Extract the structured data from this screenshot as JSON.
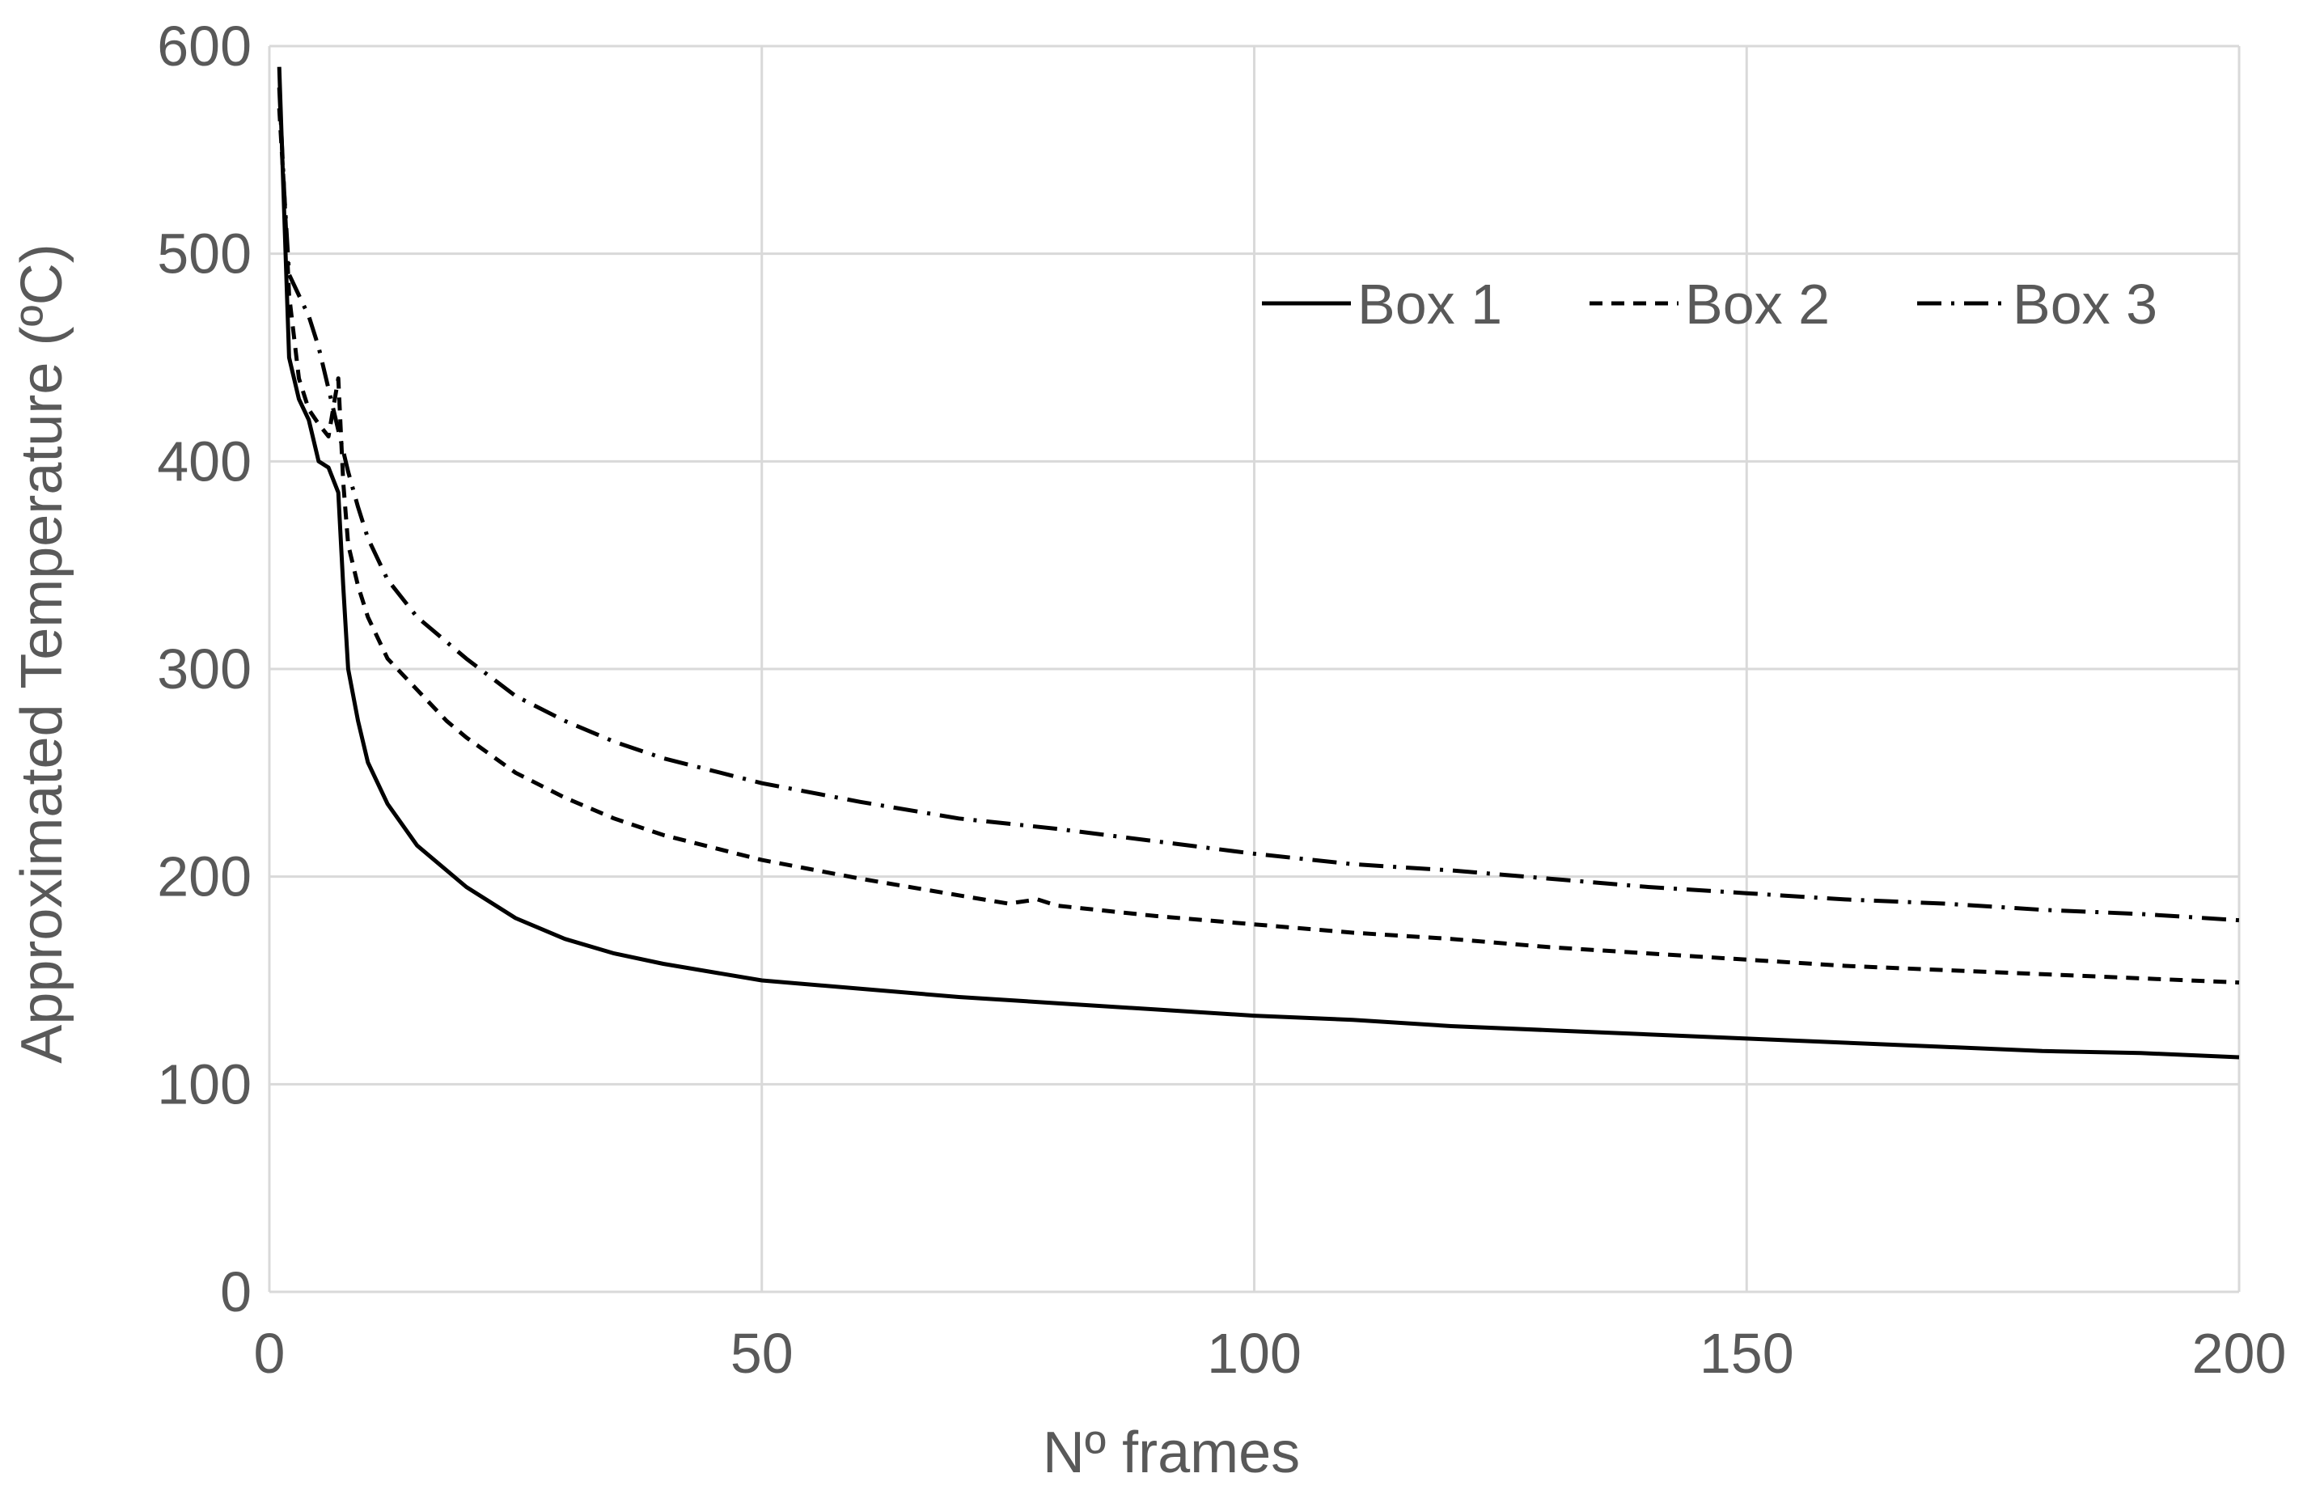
{
  "chart_data": {
    "type": "line",
    "title": "",
    "xlabel": "Nº frames",
    "ylabel": "Approximated Temperature (ºC)",
    "xlim": [
      0,
      200
    ],
    "ylim": [
      0,
      600
    ],
    "x_ticks": [
      0,
      50,
      100,
      150,
      200
    ],
    "y_ticks": [
      0,
      100,
      200,
      300,
      400,
      500,
      600
    ],
    "grid": "major x and y",
    "legend_position": "top-right",
    "series": [
      {
        "name": "Box 1",
        "line_style": "solid",
        "color": "#000000",
        "points": [
          [
            1,
            590
          ],
          [
            1.5,
            520
          ],
          [
            2,
            450
          ],
          [
            3,
            430
          ],
          [
            4,
            420
          ],
          [
            5,
            400
          ],
          [
            6,
            397
          ],
          [
            7,
            385
          ],
          [
            7.5,
            340
          ],
          [
            8,
            300
          ],
          [
            9,
            275
          ],
          [
            10,
            255
          ],
          [
            12,
            235
          ],
          [
            15,
            215
          ],
          [
            20,
            195
          ],
          [
            25,
            180
          ],
          [
            30,
            170
          ],
          [
            35,
            163
          ],
          [
            40,
            158
          ],
          [
            50,
            150
          ],
          [
            60,
            146
          ],
          [
            70,
            142
          ],
          [
            80,
            139
          ],
          [
            90,
            136
          ],
          [
            100,
            133
          ],
          [
            110,
            131
          ],
          [
            120,
            128
          ],
          [
            130,
            126
          ],
          [
            140,
            124
          ],
          [
            150,
            122
          ],
          [
            160,
            120
          ],
          [
            170,
            118
          ],
          [
            180,
            116
          ],
          [
            190,
            115
          ],
          [
            200,
            113
          ]
        ]
      },
      {
        "name": "Box 2",
        "line_style": "dashed",
        "color": "#000000",
        "points": [
          [
            1,
            570
          ],
          [
            1.5,
            530
          ],
          [
            2,
            480
          ],
          [
            3,
            440
          ],
          [
            4,
            425
          ],
          [
            5,
            418
          ],
          [
            6,
            412
          ],
          [
            7,
            440
          ],
          [
            7.5,
            390
          ],
          [
            8,
            360
          ],
          [
            9,
            340
          ],
          [
            10,
            325
          ],
          [
            12,
            305
          ],
          [
            15,
            290
          ],
          [
            18,
            275
          ],
          [
            20,
            267
          ],
          [
            25,
            250
          ],
          [
            30,
            238
          ],
          [
            35,
            228
          ],
          [
            40,
            220
          ],
          [
            50,
            208
          ],
          [
            60,
            199
          ],
          [
            70,
            191
          ],
          [
            75,
            187
          ],
          [
            78,
            189
          ],
          [
            80,
            186
          ],
          [
            90,
            181
          ],
          [
            100,
            177
          ],
          [
            110,
            173
          ],
          [
            120,
            170
          ],
          [
            130,
            166
          ],
          [
            140,
            163
          ],
          [
            150,
            160
          ],
          [
            160,
            157
          ],
          [
            170,
            155
          ],
          [
            180,
            153
          ],
          [
            190,
            151
          ],
          [
            200,
            149
          ]
        ]
      },
      {
        "name": "Box 3",
        "line_style": "dash-dot",
        "color": "#000000",
        "points": [
          [
            1,
            580
          ],
          [
            1.5,
            530
          ],
          [
            2,
            490
          ],
          [
            3,
            480
          ],
          [
            4,
            470
          ],
          [
            5,
            455
          ],
          [
            6,
            435
          ],
          [
            7,
            415
          ],
          [
            8,
            395
          ],
          [
            9,
            378
          ],
          [
            10,
            363
          ],
          [
            12,
            343
          ],
          [
            15,
            325
          ],
          [
            20,
            305
          ],
          [
            25,
            287
          ],
          [
            30,
            275
          ],
          [
            35,
            265
          ],
          [
            40,
            257
          ],
          [
            50,
            245
          ],
          [
            60,
            236
          ],
          [
            70,
            228
          ],
          [
            80,
            223
          ],
          [
            90,
            217
          ],
          [
            100,
            211
          ],
          [
            110,
            206
          ],
          [
            120,
            203
          ],
          [
            130,
            199
          ],
          [
            140,
            195
          ],
          [
            150,
            192
          ],
          [
            160,
            189
          ],
          [
            170,
            187
          ],
          [
            180,
            184
          ],
          [
            190,
            182
          ],
          [
            200,
            179
          ]
        ]
      }
    ]
  }
}
